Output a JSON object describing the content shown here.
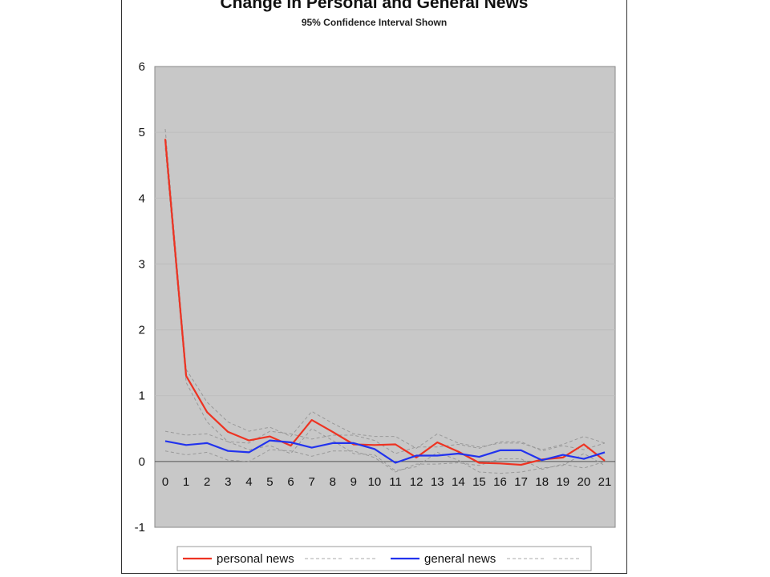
{
  "chart_data": {
    "type": "line",
    "title": "Change in Personal and General News",
    "subtitle": "95% Confidence Interval Shown",
    "xlabel": "",
    "ylabel": "",
    "x": [
      0,
      1,
      2,
      3,
      4,
      5,
      6,
      7,
      8,
      9,
      10,
      11,
      12,
      13,
      14,
      15,
      16,
      17,
      18,
      19,
      20,
      21
    ],
    "xlim": [
      0,
      21
    ],
    "ylim": [
      -1,
      6
    ],
    "yticks": [
      -1,
      0,
      1,
      2,
      3,
      4,
      5,
      6
    ],
    "grid": "horizontal",
    "legend_position": "bottom",
    "series": [
      {
        "name": "personal news",
        "color": "#ee3322",
        "values": [
          4.9,
          1.3,
          0.75,
          0.45,
          0.32,
          0.38,
          0.24,
          0.63,
          0.45,
          0.26,
          0.25,
          0.26,
          0.06,
          0.29,
          0.15,
          -0.02,
          -0.03,
          -0.05,
          0.03,
          0.06,
          0.26,
          0.01
        ],
        "ci_upper": [
          5.05,
          1.4,
          0.9,
          0.6,
          0.46,
          0.52,
          0.38,
          0.76,
          0.58,
          0.42,
          0.38,
          0.38,
          0.2,
          0.42,
          0.28,
          0.22,
          0.28,
          0.28,
          0.18,
          0.26,
          0.38,
          0.28
        ],
        "ci_lower": [
          4.76,
          1.2,
          0.6,
          0.3,
          0.18,
          0.24,
          0.12,
          0.5,
          0.32,
          0.12,
          0.1,
          -0.14,
          -0.08,
          0.14,
          0.02,
          -0.16,
          -0.18,
          -0.16,
          -0.1,
          -0.06,
          0.12,
          -0.06
        ]
      },
      {
        "name": "general news",
        "color": "#2233ee",
        "values": [
          0.31,
          0.25,
          0.28,
          0.16,
          0.14,
          0.32,
          0.29,
          0.21,
          0.28,
          0.28,
          0.19,
          -0.02,
          0.09,
          0.09,
          0.12,
          0.07,
          0.17,
          0.17,
          0.02,
          0.1,
          0.04,
          0.14
        ],
        "ci_upper": [
          0.46,
          0.4,
          0.42,
          0.3,
          0.28,
          0.46,
          0.42,
          0.34,
          0.4,
          0.4,
          0.32,
          0.12,
          0.22,
          0.22,
          0.26,
          0.2,
          0.3,
          0.3,
          0.16,
          0.24,
          0.18,
          0.28
        ],
        "ci_lower": [
          0.16,
          0.1,
          0.14,
          0.02,
          0.0,
          0.18,
          0.16,
          0.08,
          0.16,
          0.16,
          0.06,
          -0.16,
          -0.04,
          -0.04,
          -0.02,
          -0.06,
          0.04,
          0.04,
          -0.12,
          -0.04,
          -0.1,
          0.0
        ]
      }
    ]
  }
}
